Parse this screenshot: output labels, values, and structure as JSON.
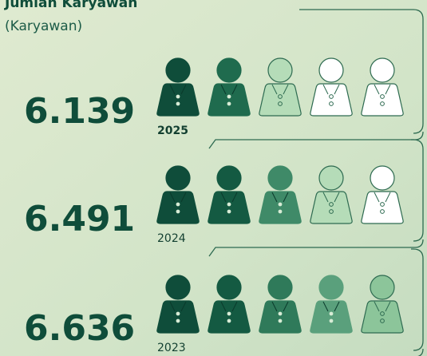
{
  "title": "Jumlah Karyawan",
  "subtitle": "(Karyawan)",
  "rows": [
    {
      "value": "6.139",
      "year": "2025"
    },
    {
      "value": "6.491",
      "year": "2024"
    },
    {
      "value": "6.636",
      "year": "2023"
    }
  ]
}
